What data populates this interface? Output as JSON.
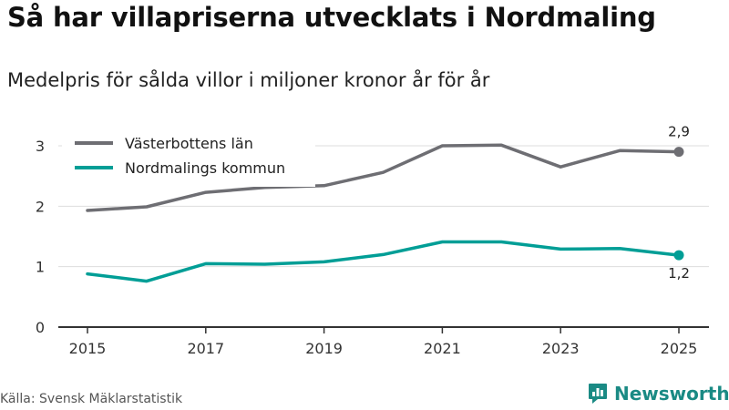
{
  "title": "Så har villapriserna utvecklats i Nordmaling",
  "subtitle": "Medelpris för sålda villor i miljoner kronor år för år",
  "source": "Källa: Svensk Mäklarstatistik",
  "brand": {
    "name": "Newsworthy",
    "color": "#1a8a84"
  },
  "chart_data": {
    "type": "line",
    "title": "Så har villapriserna utvecklats i Nordmaling",
    "subtitle": "Medelpris för sålda villor i miljoner kronor år för år",
    "xlabel": "",
    "ylabel": "",
    "x": [
      2015,
      2016,
      2017,
      2018,
      2019,
      2020,
      2021,
      2022,
      2023,
      2024,
      2025
    ],
    "x_ticks": [
      "2015",
      "2017",
      "2019",
      "2021",
      "2023",
      "2025"
    ],
    "y_ticks": [
      "0",
      "1",
      "2",
      "3"
    ],
    "xlim": [
      2015,
      2025
    ],
    "ylim": [
      0,
      3
    ],
    "grid": true,
    "legend_position": "top-left",
    "series": [
      {
        "name": "Västerbottens län",
        "color": "#6e6e73",
        "values": [
          1.93,
          1.99,
          2.23,
          2.31,
          2.34,
          2.56,
          3.0,
          3.01,
          2.65,
          2.92,
          2.9
        ],
        "end_label": "2,9"
      },
      {
        "name": "Nordmalings kommun",
        "color": "#009e96",
        "values": [
          0.88,
          0.76,
          1.05,
          1.04,
          1.08,
          1.2,
          1.41,
          1.41,
          1.29,
          1.3,
          1.19
        ],
        "end_label": "1,2"
      }
    ]
  }
}
